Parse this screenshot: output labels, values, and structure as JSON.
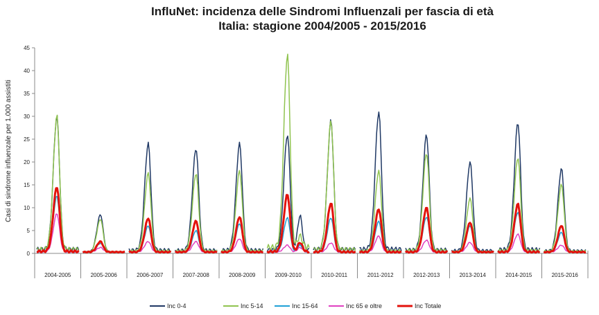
{
  "chart_data": {
    "type": "line",
    "title": "InfluNet: incidenza delle Sindromi Influenzali per fascia di età",
    "subtitle": "Italia: stagione 2004/2005 - 2015/2016",
    "xlabel": "",
    "ylabel": "Casi di sindrome influenzale per 1.000 assistiti",
    "ylim": [
      0,
      45
    ],
    "yticks": [
      "0",
      "5",
      "10",
      "15",
      "20",
      "25",
      "30",
      "35",
      "40",
      "45"
    ],
    "grid": false,
    "legend_position": "bottom",
    "seasons": [
      "2004-2005",
      "2005-2006",
      "2006-2007",
      "2007-2008",
      "2008-2009",
      "2009-2010",
      "2010-2011",
      "2011-2012",
      "2012-2013",
      "2013-2014",
      "2014-2015",
      "2015-2016"
    ],
    "series": [
      {
        "name": "Inc 0-4",
        "color": "#1f3864",
        "peaks": [
          30.0,
          8.5,
          24.0,
          23.0,
          24.0,
          26.0,
          29.0,
          31.0,
          26.0,
          20.0,
          28.7,
          18.5
        ],
        "secondary": [
          0,
          0,
          0,
          0,
          0,
          7.5,
          0,
          0,
          0,
          0,
          0,
          0
        ]
      },
      {
        "name": "Inc 5-14",
        "color": "#8fc34f",
        "peaks": [
          30.0,
          7.5,
          17.5,
          17.5,
          18.0,
          43.5,
          29.0,
          18.0,
          22.0,
          12.0,
          21.0,
          15.0
        ],
        "secondary": [
          0,
          0,
          0,
          0,
          0,
          2.5,
          0,
          0,
          0,
          0,
          0,
          0
        ]
      },
      {
        "name": "Inc 15-64",
        "color": "#1ea0d6",
        "peaks": [
          12.5,
          2.2,
          6.0,
          5.0,
          6.5,
          7.8,
          7.8,
          7.0,
          8.0,
          6.0,
          9.0,
          4.6
        ],
        "secondary": [
          0,
          0,
          0,
          0,
          0,
          1.5,
          0,
          0,
          0,
          0,
          0,
          0
        ]
      },
      {
        "name": "Inc 65 e oltre",
        "color": "#e040c0",
        "peaks": [
          8.7,
          1.3,
          2.6,
          2.6,
          3.2,
          1.8,
          2.3,
          3.8,
          2.9,
          2.4,
          4.2,
          1.8
        ],
        "secondary": [
          0,
          0,
          0,
          0,
          0,
          1.0,
          0,
          0,
          0,
          0,
          0,
          0
        ]
      },
      {
        "name": "Inc Totale",
        "color": "#e3120b",
        "peaks": [
          14.6,
          2.6,
          7.7,
          7.1,
          8.0,
          12.9,
          11.0,
          9.7,
          10.0,
          6.8,
          10.8,
          6.1
        ],
        "secondary": [
          0,
          0,
          0,
          0,
          0,
          2.0,
          0,
          0,
          0,
          0,
          0,
          0
        ]
      }
    ]
  }
}
